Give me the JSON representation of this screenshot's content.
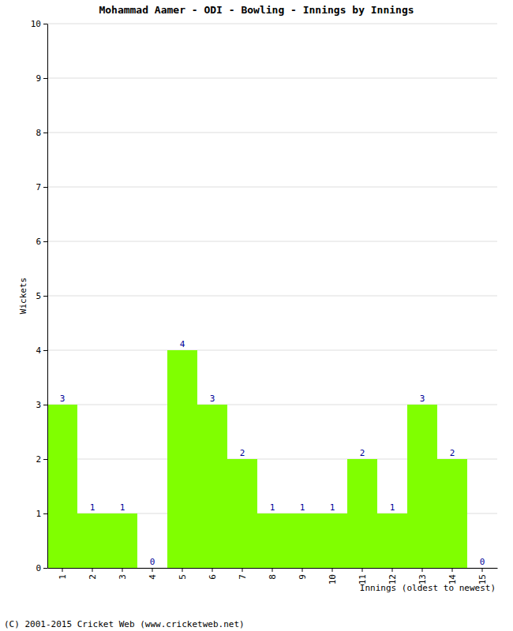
{
  "chart_data": {
    "type": "bar",
    "title": "Mohammad Aamer - ODI - Bowling - Innings by Innings",
    "x_label": "Innings (oldest to newest)",
    "y_label": "Wickets",
    "annotations": [
      "(C) 2001-2015 Cricket Web (www.cricketweb.net)"
    ],
    "categories": [
      "1",
      "2",
      "3",
      "4",
      "5",
      "6",
      "7",
      "8",
      "9",
      "10",
      "11",
      "12",
      "13",
      "14",
      "15"
    ],
    "values": [
      3,
      1,
      1,
      0,
      4,
      3,
      2,
      1,
      1,
      1,
      2,
      1,
      3,
      2,
      0
    ],
    "color": "#80ff00",
    "ylim": [
      0,
      10
    ],
    "yticks": [
      0,
      1,
      2,
      3,
      4,
      5,
      6,
      7,
      8,
      9,
      10
    ],
    "grid": true,
    "data_labels": true
  }
}
